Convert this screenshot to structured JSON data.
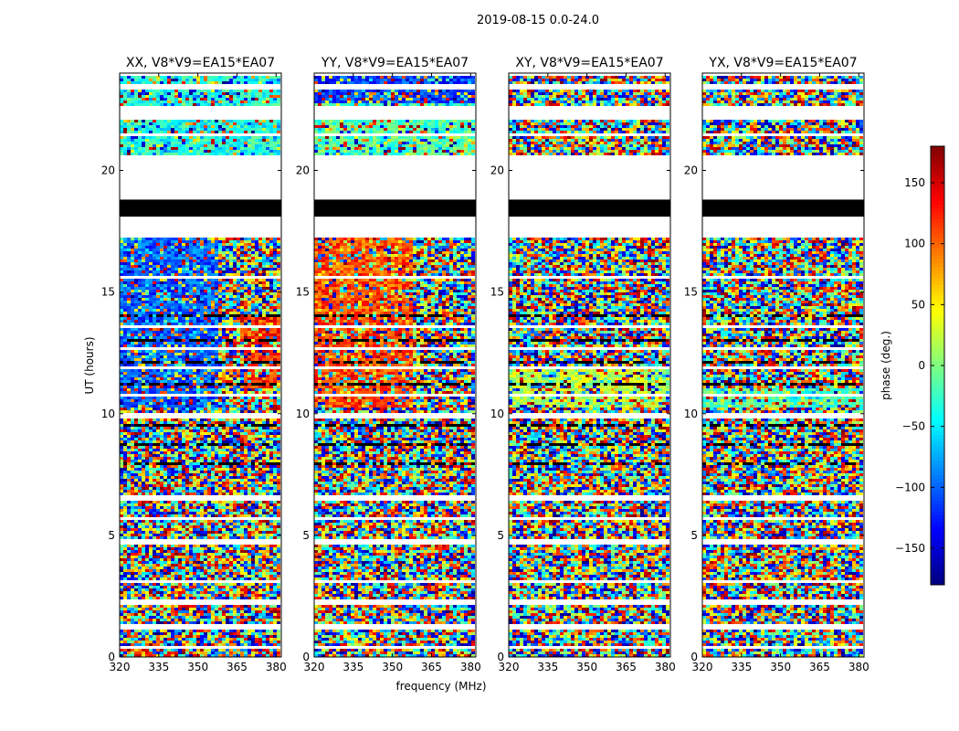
{
  "figure_title": "2019-08-15 0.0-24.0",
  "chart_data": {
    "type": "heatmap",
    "title": "2019-08-15 0.0-24.0",
    "xlabel": "frequency (MHz)",
    "ylabel": "UT (hours)",
    "xlim": [
      320,
      382
    ],
    "ylim": [
      0,
      24
    ],
    "xticks": [
      "320",
      "335",
      "350",
      "365",
      "380"
    ],
    "yticks": [
      "0",
      "5",
      "10",
      "15",
      "20"
    ],
    "panels": [
      {
        "title": "XX, V8*V9=EA15*EA07",
        "polarization": "XX"
      },
      {
        "title": "YY, V8*V9=EA15*EA07",
        "polarization": "YY"
      },
      {
        "title": "XY, V8*V9=EA15*EA07",
        "polarization": "XY"
      },
      {
        "title": "YX, V8*V9=EA15*EA07",
        "polarization": "YX"
      }
    ],
    "colorbar": {
      "label": "phase (deg.)",
      "range": [
        -180,
        180
      ],
      "ticks": [
        "150",
        "100",
        "50",
        "0",
        "−50",
        "−100",
        "−150"
      ],
      "colormap": "jet"
    },
    "flagged_black_hours": [
      [
        18.1,
        18.8
      ]
    ],
    "no_data_hours": [
      [
        17.2,
        18.1
      ],
      [
        18.8,
        20.6
      ],
      [
        9.8,
        10.0
      ]
    ]
  },
  "colors": {
    "flagged": "#000000",
    "background": "#ffffff"
  }
}
